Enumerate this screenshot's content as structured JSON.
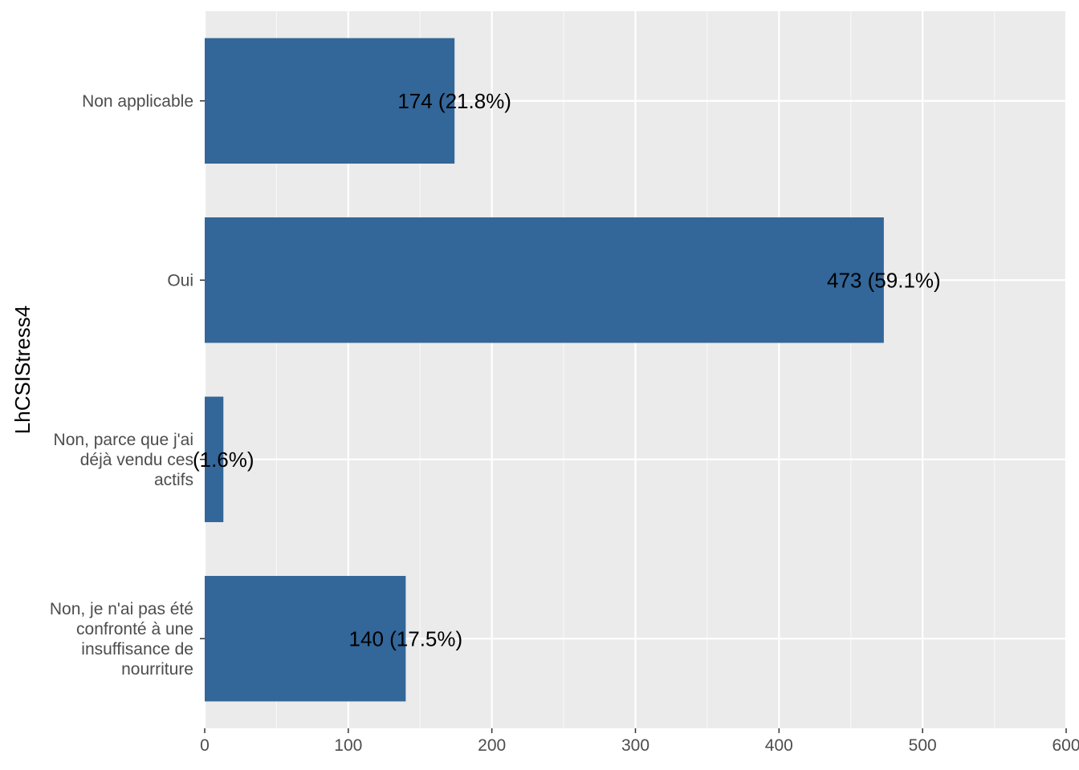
{
  "chart_data": {
    "type": "bar",
    "orientation": "horizontal",
    "categories": [
      [
        "Non applicable"
      ],
      [
        "Oui"
      ],
      [
        "Non, parce que j'ai",
        "déjà vendu ces",
        "actifs"
      ],
      [
        "Non, je n'ai pas été",
        "confronté à une",
        "insuffisance de",
        "nourriture"
      ]
    ],
    "values": [
      174,
      473,
      13,
      140
    ],
    "value_labels": [
      "174 (21.8%)",
      "473 (59.1%)",
      "(1.6%)",
      "140 (17.5%)"
    ],
    "xlabel": "",
    "ylabel": "LhCSIStress4",
    "xlim": [
      0,
      600
    ],
    "xticks": [
      0,
      100,
      200,
      300,
      400,
      500,
      600
    ],
    "grid": true,
    "colors": {
      "bar": "#336699",
      "panel": "#ebebeb",
      "grid_major": "#ffffff",
      "grid_minor": "#f7f7f7",
      "tick_text": "#4d4d4d",
      "tick_mark": "#333333"
    }
  }
}
